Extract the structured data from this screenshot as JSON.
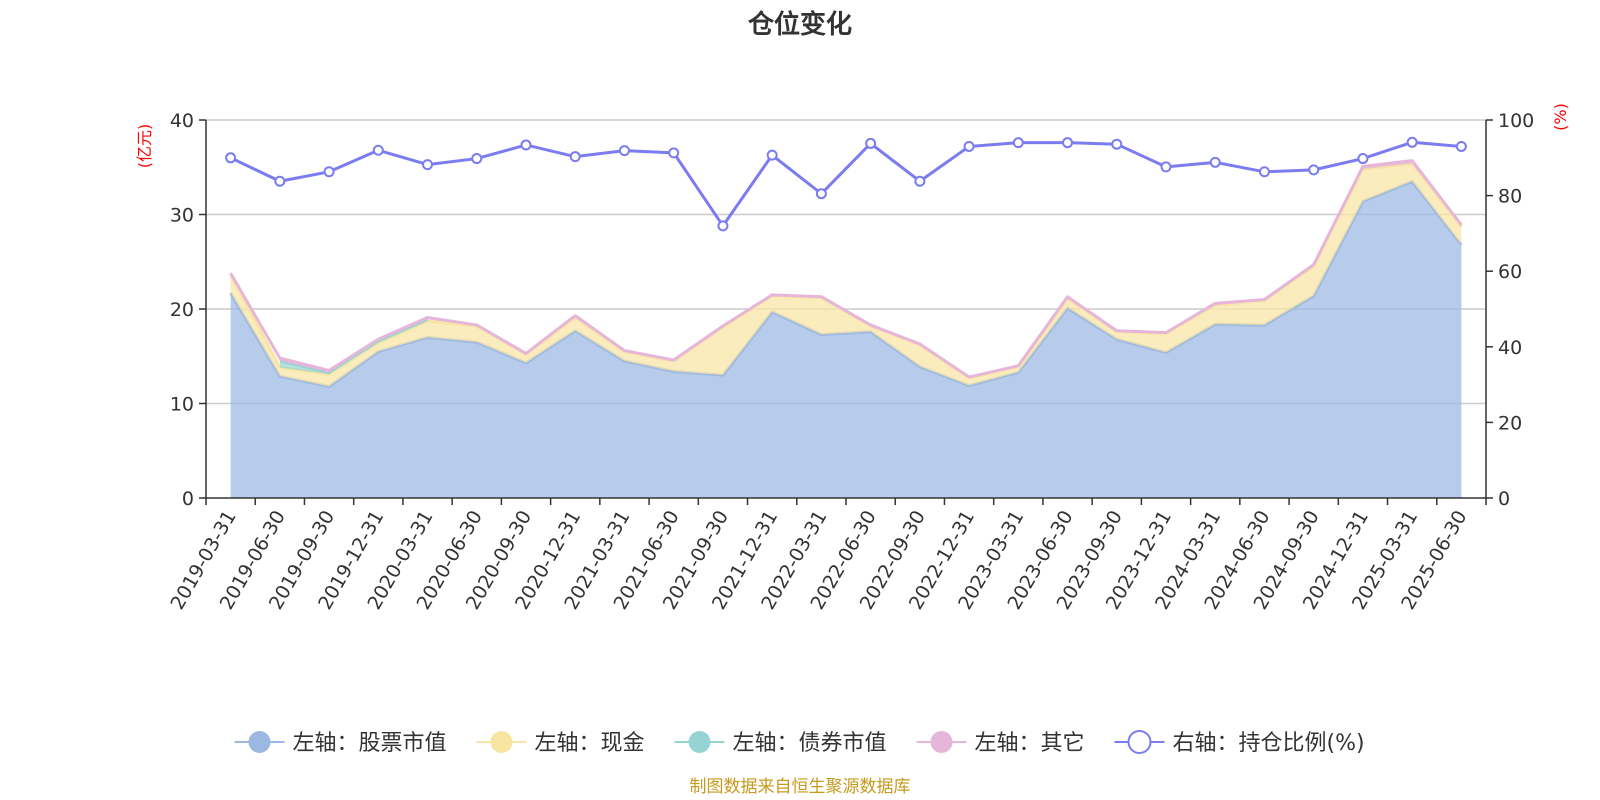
{
  "chart_data": {
    "type": "area",
    "title": "仓位变化",
    "left_unit": "(亿元)",
    "right_unit": "(%)",
    "y_left": {
      "min": 0,
      "max": 40,
      "ticks": [
        "0",
        "10",
        "20",
        "30",
        "40"
      ]
    },
    "y_right": {
      "min": 0,
      "max": 100,
      "ticks": [
        "0",
        "20",
        "40",
        "60",
        "80",
        "100"
      ]
    },
    "grid": true,
    "legend_position": "bottom",
    "categories": [
      "2019-03-31",
      "2019-06-30",
      "2019-09-30",
      "2019-12-31",
      "2020-03-31",
      "2020-06-30",
      "2020-09-30",
      "2020-12-31",
      "2021-03-31",
      "2021-06-30",
      "2021-09-30",
      "2021-12-31",
      "2022-03-31",
      "2022-06-30",
      "2022-09-30",
      "2022-12-31",
      "2023-03-31",
      "2023-06-30",
      "2023-09-30",
      "2023-12-31",
      "2024-03-31",
      "2024-06-30",
      "2024-09-30",
      "2024-12-31",
      "2025-03-31",
      "2025-06-30"
    ],
    "series": [
      {
        "name": "左轴：股票市值",
        "axis": "left",
        "stack": true,
        "color": "#9bb8e2",
        "values": [
          21.7,
          12.9,
          11.8,
          15.5,
          17.0,
          16.5,
          14.3,
          17.7,
          14.5,
          13.4,
          13.0,
          19.7,
          17.3,
          17.6,
          13.9,
          11.9,
          13.3,
          20.1,
          16.8,
          15.4,
          18.4,
          18.3,
          21.4,
          31.4,
          33.5,
          26.8
        ]
      },
      {
        "name": "左轴：现金",
        "axis": "left",
        "stack": true,
        "color": "#f9e5a3",
        "values": [
          1.9,
          0.9,
          1.3,
          0.9,
          1.7,
          1.7,
          0.9,
          1.4,
          1.0,
          1.1,
          5.1,
          1.7,
          3.9,
          0.6,
          2.3,
          0.8,
          0.6,
          1.0,
          0.8,
          2.0,
          2.0,
          2.6,
          3.1,
          3.4,
          1.9,
          1.9
        ]
      },
      {
        "name": "左轴：债券市值",
        "axis": "left",
        "stack": true,
        "color": "#96d4d4",
        "values": [
          null,
          0.7,
          0.2,
          0.3,
          0.2,
          null,
          null,
          null,
          null,
          null,
          null,
          null,
          null,
          null,
          null,
          null,
          null,
          null,
          null,
          null,
          null,
          null,
          null,
          null,
          null,
          null
        ]
      },
      {
        "name": "左轴：其它",
        "axis": "left",
        "stack": true,
        "color": "#e6b6da",
        "values": [
          0.2,
          0.3,
          0.2,
          0.1,
          0.2,
          0.1,
          0.1,
          0.2,
          0.1,
          0.1,
          0.1,
          0.1,
          0.1,
          0.1,
          0.1,
          0.1,
          0.1,
          0.2,
          0.1,
          0.1,
          0.2,
          0.1,
          0.2,
          0.3,
          0.3,
          0.2
        ]
      },
      {
        "name": "右轴：持仓比例(%)",
        "axis": "right",
        "stack": false,
        "color": "#7b7cf0",
        "values": [
          90.0,
          83.8,
          86.3,
          92.0,
          88.2,
          89.8,
          93.4,
          90.3,
          91.9,
          91.3,
          72.0,
          90.7,
          80.5,
          93.8,
          83.8,
          93.0,
          94.0,
          94.0,
          93.6,
          87.6,
          88.8,
          86.3,
          86.8,
          89.8,
          94.1,
          93.0
        ]
      }
    ]
  },
  "source_note": "制图数据来自恒生聚源数据库"
}
